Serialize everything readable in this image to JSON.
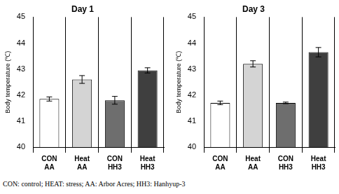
{
  "chart_data": [
    {
      "type": "bar",
      "title": "Day 1",
      "y_label": "Body temperature (℃)",
      "categories": [
        [
          "CON",
          "AA"
        ],
        [
          "Heat",
          "AA"
        ],
        [
          "CON",
          "HH3"
        ],
        [
          "Heat",
          "HH3"
        ]
      ],
      "values": [
        41.85,
        42.6,
        41.8,
        42.95
      ],
      "errors": [
        0.08,
        0.15,
        0.15,
        0.1
      ],
      "colors": [
        "#ffffff",
        "#d4d4d4",
        "#6e6e6e",
        "#3f3f3f"
      ],
      "ylim": [
        40,
        45
      ],
      "yticks": [
        40,
        41,
        42,
        43,
        44,
        45
      ],
      "grid": false
    },
    {
      "type": "bar",
      "title": "Day 3",
      "y_label": "Body temperature (℃)",
      "categories": [
        [
          "CON",
          "AA"
        ],
        [
          "Heat",
          "AA"
        ],
        [
          "CON",
          "HH3"
        ],
        [
          "Heat",
          "HH3"
        ]
      ],
      "values": [
        41.7,
        43.2,
        41.7,
        43.65
      ],
      "errors": [
        0.07,
        0.12,
        0.03,
        0.18
      ],
      "colors": [
        "#ffffff",
        "#d4d4d4",
        "#6e6e6e",
        "#3f3f3f"
      ],
      "ylim": [
        40,
        45
      ],
      "yticks": [
        40,
        41,
        42,
        43,
        44,
        45
      ],
      "grid": false
    }
  ],
  "footnote": "CON: control; HEAT: stress; AA: Arbor Acres; HH3: Hanhyup-3"
}
